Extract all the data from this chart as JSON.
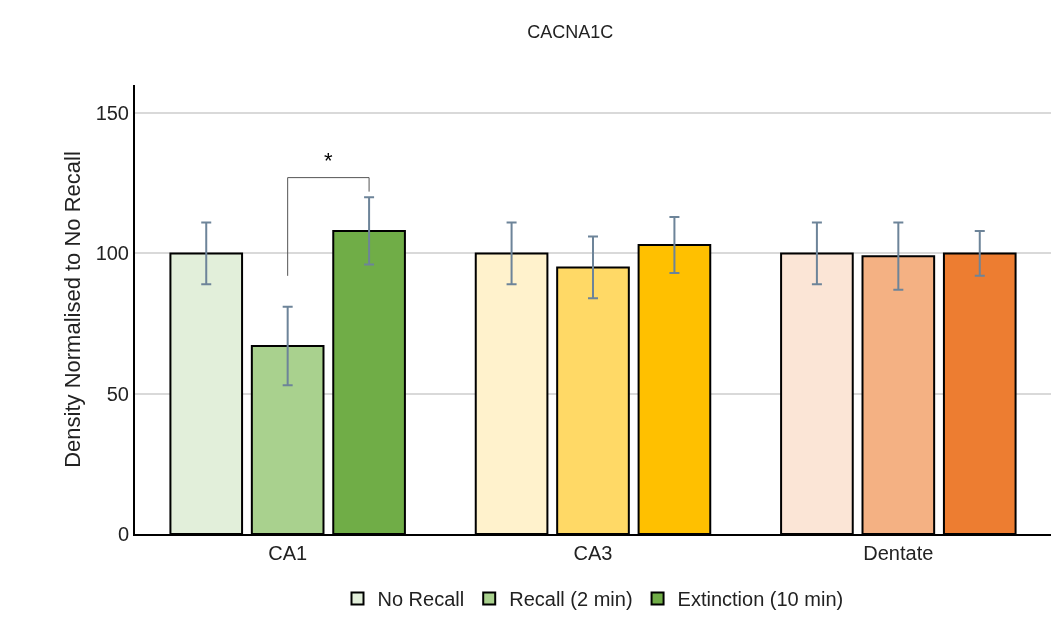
{
  "chart_data": {
    "type": "bar",
    "title": "CACNA1C",
    "ylabel": "Density Normalised to No Recall",
    "categories": [
      "CA1",
      "CA3",
      "Dentate"
    ],
    "series": [
      {
        "name": "No Recall",
        "colors": [
          "#e2efda",
          "#fff2cc",
          "#fbe5d6"
        ],
        "values": [
          100,
          100,
          100
        ],
        "errors": [
          11,
          11,
          11
        ]
      },
      {
        "name": "Recall (2 min)",
        "colors": [
          "#a9d18e",
          "#ffd966",
          "#f4b183"
        ],
        "values": [
          67,
          95,
          99
        ],
        "errors": [
          14,
          11,
          12
        ]
      },
      {
        "name": "Extinction (10 min)",
        "colors": [
          "#70ad47",
          "#ffc000",
          "#ed7d31"
        ],
        "values": [
          108,
          103,
          100
        ],
        "errors": [
          12,
          10,
          8
        ]
      }
    ],
    "ylim": [
      0,
      160
    ],
    "yticks": [
      0,
      50,
      100,
      150
    ],
    "grid": "y",
    "legend": "bottom",
    "annotations": [
      "*"
    ]
  }
}
